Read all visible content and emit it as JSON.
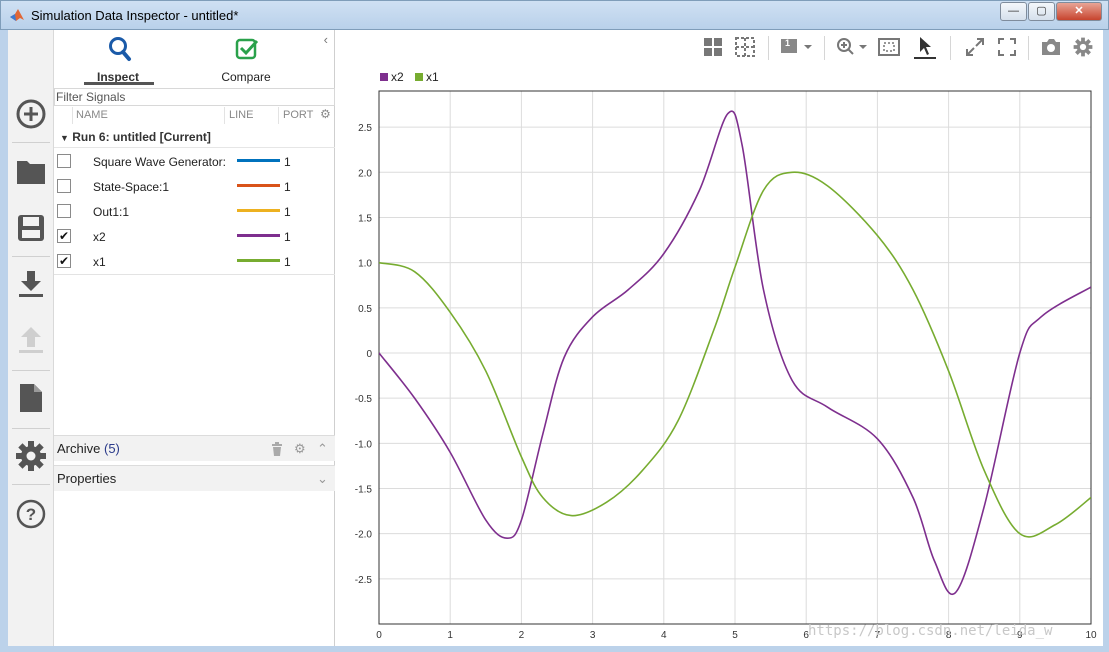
{
  "window": {
    "title": "Simulation Data Inspector - untitled*",
    "min": "—",
    "max": "▢",
    "close": "✕"
  },
  "rail": {
    "items": [
      "add-icon",
      "folder-icon",
      "save-icon",
      "download-icon",
      "upload-icon",
      "document-icon",
      "gear-icon",
      "help-icon"
    ]
  },
  "tabs": {
    "inspect": "Inspect",
    "compare": "Compare"
  },
  "panel": {
    "filter_placeholder": "Filter Signals",
    "columns": {
      "name": "NAME",
      "line": "LINE",
      "port": "PORT"
    },
    "run_label": "Run 6: untitled [Current]",
    "signals": [
      {
        "name": "Square Wave Generator:",
        "color": "#0072bd",
        "port": "1",
        "checked": false
      },
      {
        "name": "State-Space:1",
        "color": "#d95319",
        "port": "1",
        "checked": false
      },
      {
        "name": "Out1:1",
        "color": "#edb120",
        "port": "1",
        "checked": false
      },
      {
        "name": "x2",
        "color": "#7e2f8e",
        "port": "1",
        "checked": true
      },
      {
        "name": "x1",
        "color": "#77ac30",
        "port": "1",
        "checked": true
      }
    ],
    "archive_label": "Archive",
    "archive_count": "(5)",
    "properties_label": "Properties"
  },
  "toolbar": {
    "layout_badge": "1"
  },
  "chart_data": {
    "type": "line",
    "title": "",
    "xlabel": "",
    "ylabel": "",
    "xlim": [
      0,
      10
    ],
    "ylim": [
      -3.0,
      2.9
    ],
    "xticks": [
      "0",
      "1",
      "2",
      "3",
      "4",
      "5",
      "6",
      "7",
      "8",
      "9",
      "10"
    ],
    "yticks": [
      "2.5",
      "2.0",
      "1.5",
      "1.0",
      "0.5",
      "0",
      "-0.5",
      "-1.0",
      "-1.5",
      "-2.0",
      "-2.5"
    ],
    "grid": true,
    "legend": "top-left",
    "series": [
      {
        "name": "x2",
        "color": "#7e2f8e",
        "x": [
          0,
          0.5,
          1,
          1.5,
          1.8,
          2,
          2.3,
          2.6,
          3,
          3.5,
          4,
          4.5,
          4.9,
          5.1,
          5.4,
          5.8,
          6.3,
          7,
          7.5,
          7.8,
          8.1,
          8.5,
          9,
          9.3,
          10
        ],
        "y": [
          0,
          -0.5,
          -1.1,
          -1.85,
          -2.05,
          -1.85,
          -0.9,
          -0.05,
          0.4,
          0.7,
          1.1,
          1.8,
          2.65,
          2.3,
          0.7,
          -0.3,
          -0.6,
          -0.95,
          -1.6,
          -2.3,
          -2.65,
          -1.7,
          0.0,
          0.4,
          0.73
        ]
      },
      {
        "name": "x1",
        "color": "#77ac30",
        "x": [
          0,
          0.5,
          1,
          1.5,
          2,
          2.3,
          2.7,
          3.2,
          3.7,
          4.2,
          4.7,
          5,
          5.4,
          5.8,
          6.3,
          7,
          7.5,
          8,
          8.5,
          9,
          9.5,
          10
        ],
        "y": [
          1.0,
          0.9,
          0.45,
          -0.2,
          -1.15,
          -1.6,
          -1.8,
          -1.65,
          -1.3,
          -0.75,
          0.25,
          0.95,
          1.8,
          2.0,
          1.85,
          1.3,
          0.7,
          -0.2,
          -1.3,
          -2.0,
          -1.9,
          -1.6
        ]
      }
    ]
  },
  "watermark": "https://blog.csdn.net/leida_w"
}
